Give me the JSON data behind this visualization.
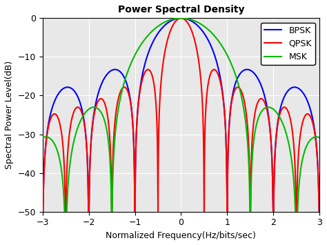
{
  "title": "Power Spectral Density",
  "xlabel": "Normalized Frequency(Hz/bits/sec)",
  "ylabel": "Spectral Power Level(dB)",
  "xlim": [
    -3,
    3
  ],
  "ylim": [
    -50,
    0
  ],
  "yticks": [
    0,
    -10,
    -20,
    -30,
    -40,
    -50
  ],
  "xticks": [
    -3,
    -2,
    -1,
    0,
    1,
    2,
    3
  ],
  "bpsk_color": "#0000FF",
  "qpsk_color": "#FF0000",
  "msk_color": "#00BB00",
  "linewidth": 1.5,
  "legend_labels": [
    "BPSK",
    "QPSK",
    "MSK"
  ],
  "legend_loc": "upper right",
  "background_color": "#E8E8E8",
  "grid_color": "white"
}
